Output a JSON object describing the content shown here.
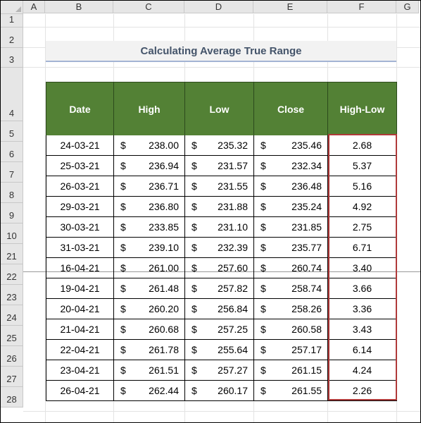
{
  "columns": [
    "A",
    "B",
    "C",
    "D",
    "E",
    "F",
    "G"
  ],
  "rows": [
    "1",
    "2",
    "3",
    "4",
    "5",
    "6",
    "7",
    "8",
    "9",
    "10",
    "21",
    "22",
    "23",
    "24",
    "25",
    "26",
    "27",
    "28"
  ],
  "title": "Calculating Average True Range",
  "table": {
    "headers": [
      "Date",
      "High",
      "Low",
      "Close",
      "High-Low"
    ],
    "currency": "$",
    "data": [
      {
        "date": "24-03-21",
        "high": "238.00",
        "low": "235.32",
        "close": "235.46",
        "hl": "2.68"
      },
      {
        "date": "25-03-21",
        "high": "236.94",
        "low": "231.57",
        "close": "232.34",
        "hl": "5.37"
      },
      {
        "date": "26-03-21",
        "high": "236.71",
        "low": "231.55",
        "close": "236.48",
        "hl": "5.16"
      },
      {
        "date": "29-03-21",
        "high": "236.80",
        "low": "231.88",
        "close": "235.24",
        "hl": "4.92"
      },
      {
        "date": "30-03-21",
        "high": "233.85",
        "low": "231.10",
        "close": "231.85",
        "hl": "2.75"
      },
      {
        "date": "31-03-21",
        "high": "239.10",
        "low": "232.39",
        "close": "235.77",
        "hl": "6.71"
      },
      {
        "date": "16-04-21",
        "high": "261.00",
        "low": "257.60",
        "close": "260.74",
        "hl": "3.40"
      },
      {
        "date": "19-04-21",
        "high": "261.48",
        "low": "257.82",
        "close": "258.74",
        "hl": "3.66"
      },
      {
        "date": "20-04-21",
        "high": "260.20",
        "low": "256.84",
        "close": "258.26",
        "hl": "3.36"
      },
      {
        "date": "21-04-21",
        "high": "260.68",
        "low": "257.25",
        "close": "260.58",
        "hl": "3.43"
      },
      {
        "date": "22-04-21",
        "high": "261.78",
        "low": "255.64",
        "close": "257.17",
        "hl": "6.14"
      },
      {
        "date": "23-04-21",
        "high": "261.51",
        "low": "257.27",
        "close": "261.15",
        "hl": "4.24"
      },
      {
        "date": "26-04-21",
        "high": "262.44",
        "low": "260.17",
        "close": "261.55",
        "hl": "2.26"
      }
    ]
  },
  "colors": {
    "header_fill": "#538135",
    "highlight_border": "#b03a3a",
    "title_text": "#44546a",
    "title_underline": "#a3b4d4"
  }
}
